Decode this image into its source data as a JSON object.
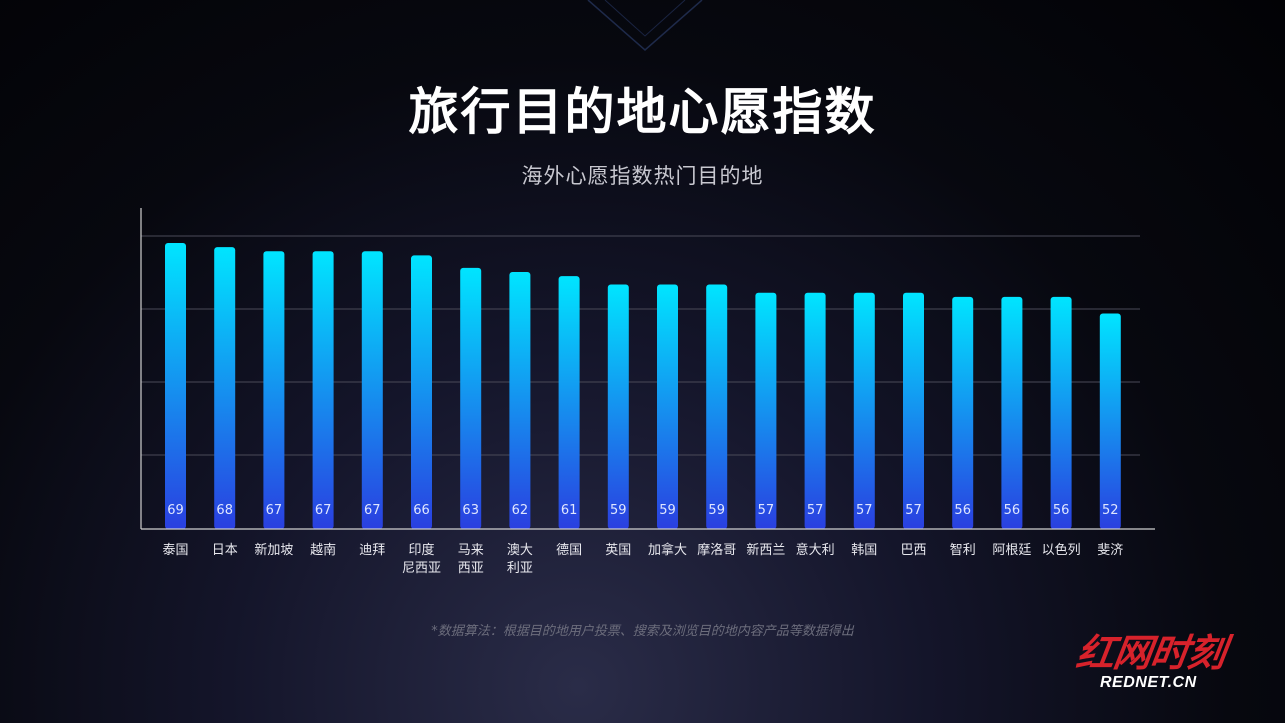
{
  "header": {
    "title": "旅行目的地心愿指数",
    "subtitle": "海外心愿指数热门目的地"
  },
  "footnote": "*数据算法：根据目的地用户投票、搜索及浏览目的地内容产品等数据得出",
  "logo": {
    "text": "红网时刻",
    "url": "REDNET.CN",
    "color": "#d7222b"
  },
  "colors": {
    "bar_top": "#00e5ff",
    "bar_bottom": "#2a3fe0",
    "axis": "#d0d0d0",
    "grid": "#4a4a58"
  },
  "chart_data": {
    "type": "bar",
    "categories": [
      "泰国",
      "日本",
      "新加坡",
      "越南",
      "迪拜",
      "印度\n尼西亚",
      "马来\n西亚",
      "澳大\n利亚",
      "德国",
      "英国",
      "加拿大",
      "摩洛哥",
      "新西兰",
      "意大利",
      "韩国",
      "巴西",
      "智利",
      "阿根廷",
      "以色列",
      "斐济"
    ],
    "values": [
      69,
      68,
      67,
      67,
      67,
      66,
      63,
      62,
      61,
      59,
      59,
      59,
      57,
      57,
      57,
      57,
      56,
      56,
      56,
      52
    ],
    "grid": true,
    "data_labels": "inside-bottom"
  }
}
